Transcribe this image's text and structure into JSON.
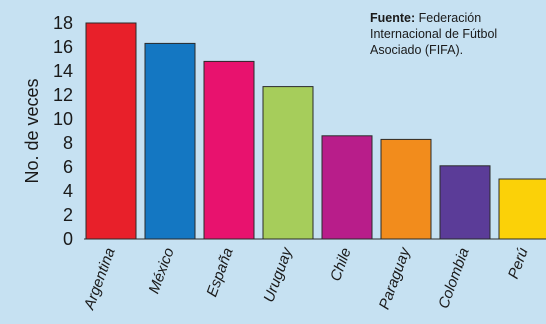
{
  "source": {
    "label": "Fuente:",
    "text": "Federación Internacional de Fútbol Asociado (FIFA)."
  },
  "chart_data": {
    "type": "bar",
    "title": "",
    "xlabel": "",
    "ylabel": "No. de veces",
    "ylim": [
      0,
      18
    ],
    "yticks": [
      0,
      2,
      4,
      6,
      8,
      10,
      12,
      14,
      16,
      18
    ],
    "grid": false,
    "categories": [
      "Argentina",
      "México",
      "España",
      "Uruguay",
      "Chile",
      "Paraguay",
      "Colombia",
      "Perú"
    ],
    "values": [
      18,
      16.3,
      14.8,
      12.7,
      8.6,
      8.3,
      6.1,
      5.0
    ],
    "colors": [
      "#e8202a",
      "#1477c2",
      "#e8126e",
      "#a6cd5b",
      "#b81d8a",
      "#f28c1c",
      "#5b3c98",
      "#fbd108"
    ],
    "bar_edge_color": "#2a2a2a"
  }
}
